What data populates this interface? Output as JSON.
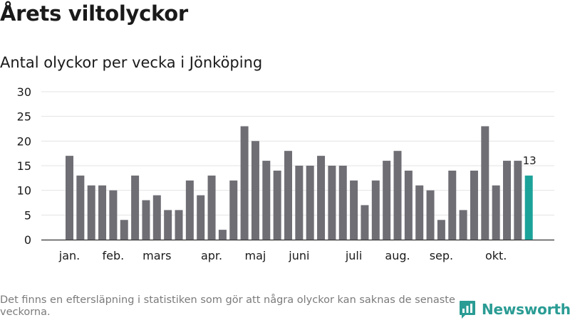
{
  "title": "Årets viltolyckor",
  "subtitle": "Antal olyckor per vecka i Jönköping",
  "footnote": "Det finns en eftersläpning i statistiken som gör att några olyckor kan saknas de senaste veckorna.",
  "brand": {
    "name": "Newsworthy",
    "icon": "bar-chart-logo-icon",
    "color": "#2a9c94"
  },
  "chart_data": {
    "type": "bar",
    "values": [
      17,
      13,
      11,
      11,
      10,
      4,
      13,
      8,
      9,
      6,
      6,
      12,
      9,
      13,
      2,
      12,
      23,
      20,
      16,
      14,
      18,
      15,
      15,
      17,
      15,
      15,
      12,
      7,
      12,
      16,
      18,
      14,
      11,
      10,
      4,
      14,
      6,
      14,
      23,
      11,
      16,
      16,
      13
    ],
    "month_labels": [
      {
        "label": "jan.",
        "bar_index": 0
      },
      {
        "label": "feb.",
        "bar_index": 4
      },
      {
        "label": "mars",
        "bar_index": 8
      },
      {
        "label": "apr.",
        "bar_index": 13
      },
      {
        "label": "maj",
        "bar_index": 17
      },
      {
        "label": "juni",
        "bar_index": 21
      },
      {
        "label": "juli",
        "bar_index": 26
      },
      {
        "label": "aug.",
        "bar_index": 30
      },
      {
        "label": "sep.",
        "bar_index": 34
      },
      {
        "label": "okt.",
        "bar_index": 39
      }
    ],
    "yticks": [
      0,
      5,
      10,
      15,
      20,
      25,
      30
    ],
    "ylim": [
      0,
      30
    ],
    "bar_color": "#6f6e75",
    "highlight_color": "#1ba39a",
    "highlight_index": 42,
    "highlight_label": "13",
    "grid": true
  }
}
